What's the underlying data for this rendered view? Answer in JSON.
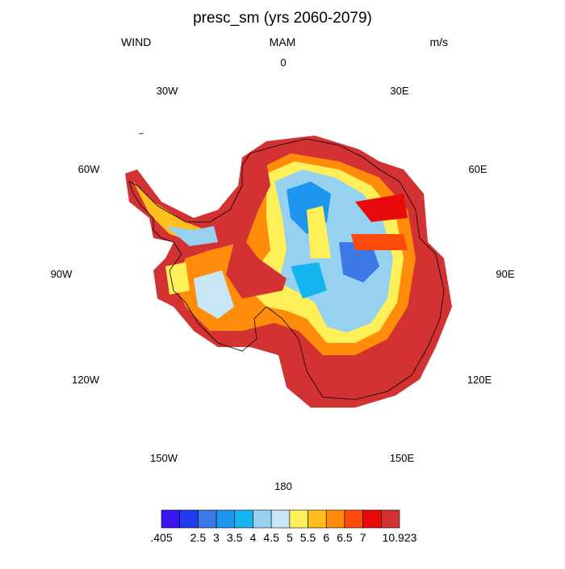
{
  "title": "presc_sm (yrs 2060-2079)",
  "left_string": "WIND",
  "center_string": "MAM",
  "right_string": "m/s",
  "longitude_labels": [
    "0",
    "30E",
    "60E",
    "90E",
    "120E",
    "150E",
    "180",
    "150W",
    "120W",
    "90W",
    "60W",
    "30W"
  ],
  "colorbar": {
    "colors": [
      "#3c14f0",
      "#1e3cf0",
      "#3c78e6",
      "#1e96f0",
      "#14b4f0",
      "#96d2f0",
      "#c8e6f5",
      "#fff05a",
      "#ffbe1e",
      "#ff8c0a",
      "#ff4b0a",
      "#e60a0a",
      "#d23232"
    ],
    "labels": [
      ".405",
      "2.5",
      "3",
      "3.5",
      "4",
      "4.5",
      "5",
      "5.5",
      "6",
      "6.5",
      "7",
      "10.923"
    ]
  }
}
